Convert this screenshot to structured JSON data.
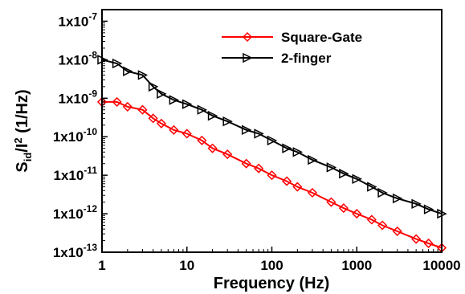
{
  "chart_data": {
    "type": "line",
    "xlabel": "Frequency (Hz)",
    "ylabel_parts": {
      "S": "S",
      "id": "id",
      "slash": "/I",
      "sup": "2",
      "rest": " (1/Hz)"
    },
    "x_scale": "log",
    "y_scale": "log",
    "xlim": [
      1,
      10000
    ],
    "ylim": [
      1e-13,
      2e-07
    ],
    "x_ticks": [
      {
        "value": 1,
        "label": "1"
      },
      {
        "value": 10,
        "label": "10"
      },
      {
        "value": 100,
        "label": "100"
      },
      {
        "value": 1000,
        "label": "1000"
      },
      {
        "value": 10000,
        "label": "10000"
      }
    ],
    "y_ticks": [
      {
        "value": 1e-13,
        "base": "1x10",
        "exp": "-13"
      },
      {
        "value": 1e-12,
        "base": "1x10",
        "exp": "-12"
      },
      {
        "value": 1e-11,
        "base": "1x10",
        "exp": "-11"
      },
      {
        "value": 1e-10,
        "base": "1x10",
        "exp": "-10"
      },
      {
        "value": 1e-09,
        "base": "1x10",
        "exp": "-9"
      },
      {
        "value": 1e-08,
        "base": "1x10",
        "exp": "-8"
      },
      {
        "value": 1e-07,
        "base": "1x10",
        "exp": "-7"
      }
    ],
    "legend_position": "top-right",
    "series": [
      {
        "name": "Square-Gate",
        "color": "#ff0000",
        "marker": "diamond",
        "x": [
          1,
          1.5,
          2,
          3,
          4,
          5,
          7,
          10,
          15,
          20,
          30,
          50,
          70,
          100,
          150,
          200,
          300,
          500,
          700,
          1000,
          1500,
          2000,
          3000,
          5000,
          7000,
          10000
        ],
        "y": [
          8e-10,
          8e-10,
          6e-10,
          5e-10,
          3e-10,
          2.2e-10,
          1.5e-10,
          1.2e-10,
          8e-11,
          5e-11,
          3.5e-11,
          2e-11,
          1.5e-11,
          1e-11,
          7e-12,
          5e-12,
          3.5e-12,
          2e-12,
          1.4e-12,
          1e-12,
          7e-13,
          5e-13,
          3.5e-13,
          2.2e-13,
          1.7e-13,
          1.3e-13
        ]
      },
      {
        "name": "2-finger",
        "color": "#000000",
        "marker": "triangle-right",
        "x": [
          1,
          1.5,
          2,
          3,
          4,
          5,
          7,
          10,
          15,
          20,
          30,
          50,
          70,
          100,
          150,
          200,
          300,
          500,
          700,
          1000,
          1500,
          2000,
          3000,
          5000,
          7000,
          10000
        ],
        "y": [
          1e-08,
          8e-09,
          5e-09,
          4e-09,
          2e-09,
          1.3e-09,
          9e-10,
          7e-10,
          5e-10,
          3.5e-10,
          2.5e-10,
          1.5e-10,
          1.2e-10,
          8e-11,
          5e-11,
          4e-11,
          2.5e-11,
          1.6e-11,
          1.1e-11,
          8e-12,
          5e-12,
          3.5e-12,
          2.5e-12,
          1.8e-12,
          1.3e-12,
          1e-12
        ]
      }
    ]
  }
}
